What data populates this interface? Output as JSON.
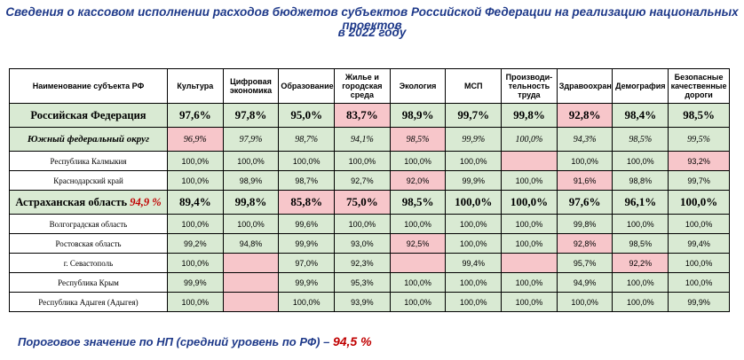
{
  "title_line1": "Сведения о кассовом исполнении расходов бюджетов субъектов Российской Федерации на реализацию национальных проектов",
  "title_line2": "в 2022 году",
  "colors": {
    "title": "#1f3a8a",
    "green": "#d9ead3",
    "pink": "#f7c6ca",
    "accent_red": "#c00000"
  },
  "headers": [
    "Наименование субъекта РФ",
    "Культура",
    "Цифровая экономика",
    "Образование",
    "Жилье и городская среда",
    "Экология",
    "МСП",
    "Производи-тельность труда",
    "Здравоохранение",
    "Демография",
    "Безопасные качественные дороги"
  ],
  "rows": [
    {
      "name": "Российская Федерация",
      "values": [
        "97,6%",
        "97,8%",
        "95,0%",
        "83,7%",
        "98,9%",
        "99,7%",
        "99,8%",
        "92,8%",
        "98,4%",
        "98,5%"
      ]
    },
    {
      "name": "Южный федеральный округ",
      "values": [
        "96,9%",
        "97,9%",
        "98,7%",
        "94,1%",
        "98,5%",
        "99,9%",
        "100,0%",
        "94,3%",
        "98,5%",
        "99,5%"
      ]
    },
    {
      "name": "Республика Калмыкия",
      "values": [
        "100,0%",
        "100,0%",
        "100,0%",
        "100,0%",
        "100,0%",
        "100,0%",
        "",
        "100,0%",
        "100,0%",
        "93,2%"
      ]
    },
    {
      "name": "Краснодарский край",
      "values": [
        "100,0%",
        "98,9%",
        "98,7%",
        "92,7%",
        "92,0%",
        "99,9%",
        "100,0%",
        "91,6%",
        "98,8%",
        "99,7%"
      ]
    },
    {
      "name": "Астраханская область",
      "name_value": "94,9 %",
      "values": [
        "89,4%",
        "99,8%",
        "85,8%",
        "75,0%",
        "98,5%",
        "100,0%",
        "100,0%",
        "97,6%",
        "96,1%",
        "100,0%"
      ]
    },
    {
      "name": "Волгоградская область",
      "values": [
        "100,0%",
        "100,0%",
        "99,6%",
        "100,0%",
        "100,0%",
        "100,0%",
        "100,0%",
        "99,8%",
        "100,0%",
        "100,0%"
      ]
    },
    {
      "name": "Ростовская область",
      "values": [
        "99,2%",
        "94,8%",
        "99,9%",
        "93,0%",
        "92,5%",
        "100,0%",
        "100,0%",
        "92,8%",
        "98,5%",
        "99,4%"
      ]
    },
    {
      "name": "г. Севастополь",
      "values": [
        "100,0%",
        "",
        "97,0%",
        "92,3%",
        "",
        "99,4%",
        "",
        "95,7%",
        "92,2%",
        "100,0%"
      ]
    },
    {
      "name": "Республика Крым",
      "values": [
        "99,9%",
        "",
        "99,9%",
        "95,3%",
        "100,0%",
        "100,0%",
        "100,0%",
        "94,9%",
        "100,0%",
        "100,0%"
      ]
    },
    {
      "name": "Республика Адыгея (Адыгея)",
      "values": [
        "100,0%",
        "",
        "100,0%",
        "93,9%",
        "100,0%",
        "100,0%",
        "100,0%",
        "100,0%",
        "100,0%",
        "99,9%"
      ]
    }
  ],
  "footer": {
    "label": "Пороговое значение по НП (средний уровень по РФ) – ",
    "value": "94,5 %"
  }
}
